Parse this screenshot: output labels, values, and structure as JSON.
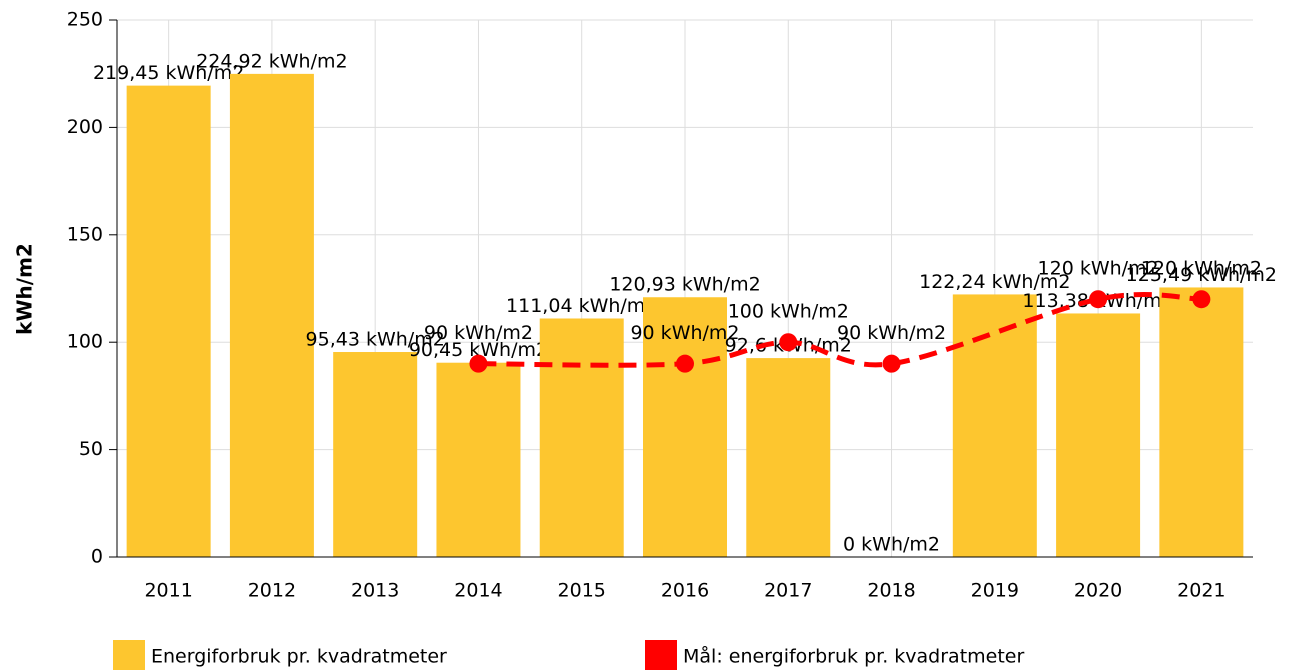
{
  "chart_data": {
    "type": "bar",
    "ylabel": "kWh/m2",
    "categories": [
      "2011",
      "2012",
      "2013",
      "2014",
      "2015",
      "2016",
      "2017",
      "2018",
      "2019",
      "2020",
      "2021"
    ],
    "series": [
      {
        "name": "Energiforbruk pr. kvadratmeter",
        "type": "bar",
        "color": "#fdc62f",
        "values": [
          219.45,
          224.92,
          95.43,
          90.45,
          111.04,
          120.93,
          92.6,
          0,
          122.24,
          113.38,
          125.49
        ],
        "value_labels": [
          "219,45 kWh/m2",
          "224,92 kWh/m2",
          "95,43 kWh/m2",
          "90,45 kWh/m2",
          "111,04 kWh/m2",
          "120,93 kWh/m2",
          "92,6 kWh/m2",
          "0 kWh/m2",
          "122,24 kWh/m2",
          "113,38 kWh/m2",
          "125,49 kWh/m2"
        ]
      },
      {
        "name": "Mål: energiforbruk pr. kvadratmeter",
        "type": "line",
        "color": "#ff0000",
        "x": [
          "2014",
          "2016",
          "2017",
          "2018",
          "2020",
          "2021"
        ],
        "values": [
          90,
          90,
          100,
          90,
          120,
          120
        ],
        "value_labels": [
          "90 kWh/m2",
          "90 kWh/m2",
          "100 kWh/m2",
          "90 kWh/m2",
          "120 kWh/m2",
          "120 kWh/m2"
        ]
      }
    ],
    "ylim": [
      0,
      250
    ],
    "yticks": [
      0,
      50,
      100,
      150,
      200,
      250
    ],
    "grid": true
  }
}
